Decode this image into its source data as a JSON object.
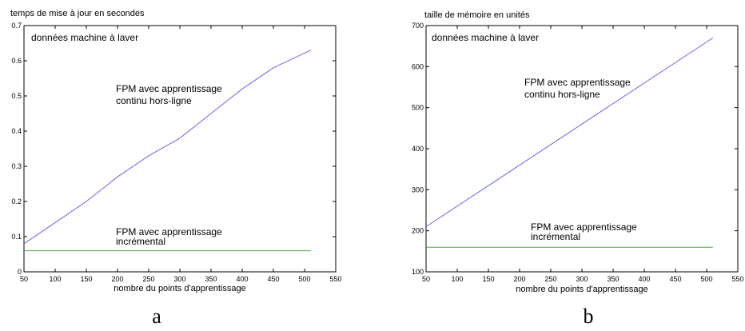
{
  "chart_data": [
    {
      "type": "line",
      "panel_label": "a",
      "ylabel": "temps de mise à jour en secondes",
      "xlabel": "nombre du points d'apprentissage",
      "dataset_note": "données machine à laver",
      "xlim": [
        50,
        550
      ],
      "ylim": [
        0,
        0.7
      ],
      "x_ticks": [
        "50",
        "100",
        "150",
        "200",
        "250",
        "300",
        "350",
        "400",
        "450",
        "500",
        "550"
      ],
      "y_ticks": [
        "0",
        "0.1",
        "0.2",
        "0.3",
        "0.4",
        "0.5",
        "0.6",
        "0.7"
      ],
      "grid": false,
      "series": [
        {
          "label_lines": [
            "FPM avec apprentissage",
            "continu hors-ligne"
          ],
          "color": "#6666ee",
          "x": [
            50,
            100,
            150,
            200,
            250,
            300,
            350,
            400,
            450,
            510
          ],
          "y": [
            0.08,
            0.14,
            0.2,
            0.27,
            0.33,
            0.38,
            0.45,
            0.52,
            0.58,
            0.63
          ]
        },
        {
          "label_lines": [
            "FPM avec apprentissage",
            "incrémental"
          ],
          "color": "#44aa44",
          "x": [
            50,
            510
          ],
          "y": [
            0.06,
            0.06
          ]
        }
      ]
    },
    {
      "type": "line",
      "panel_label": "b",
      "ylabel": "taille de mémoire en unités",
      "xlabel": "nombre du points d'apprentissage",
      "dataset_note": "données machine à laver",
      "xlim": [
        50,
        550
      ],
      "ylim": [
        100,
        700
      ],
      "x_ticks": [
        "50",
        "100",
        "150",
        "200",
        "250",
        "300",
        "350",
        "400",
        "450",
        "500",
        "550"
      ],
      "y_ticks": [
        "100",
        "200",
        "300",
        "400",
        "500",
        "600",
        "700"
      ],
      "grid": false,
      "series": [
        {
          "label_lines": [
            "FPM avec apprentissage",
            "continu hors-ligne"
          ],
          "color": "#6666ee",
          "x": [
            50,
            510
          ],
          "y": [
            210,
            670
          ]
        },
        {
          "label_lines": [
            "FPM avec apprentissage",
            "incrémental"
          ],
          "color": "#44aa44",
          "x": [
            50,
            510
          ],
          "y": [
            160,
            160
          ]
        }
      ]
    }
  ]
}
